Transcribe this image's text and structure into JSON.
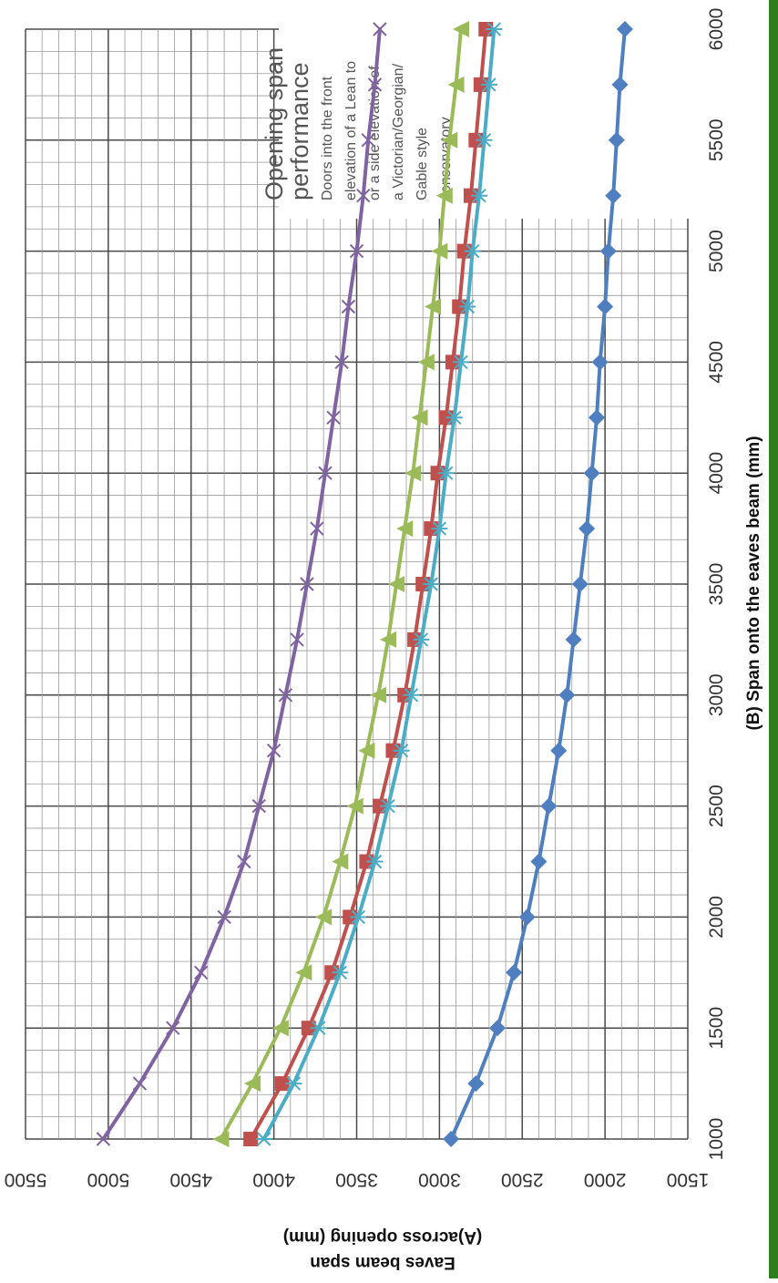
{
  "chart_data": {
    "type": "line",
    "note": {
      "title_lines": [
        "Opening span",
        "performance"
      ],
      "body_lines": [
        "Doors into the front",
        "elevation of a Lean to",
        "or a side elevation of",
        "a Victorian/Georgian/",
        "Gable style",
        "conservatory"
      ]
    },
    "xlabel": "(B) Span onto the eaves beam (mm)",
    "ylabel_lines": [
      "Eaves beam span",
      "(A)across opening (mm)"
    ],
    "xlim": [
      1000,
      6000
    ],
    "ylim": [
      1500,
      5500
    ],
    "x_ticks": [
      "1000",
      "1500",
      "2000",
      "2500",
      "3000",
      "3500",
      "4000",
      "4500",
      "5000",
      "5500",
      "6000"
    ],
    "y_ticks": [
      "1500",
      "2000",
      "2500",
      "3000",
      "3500",
      "4000",
      "4500",
      "5000",
      "5500"
    ],
    "grid": true,
    "orientation": "rotated 90 degrees clockwise",
    "x": [
      1000,
      1250,
      1500,
      1750,
      2000,
      2250,
      2500,
      2750,
      3000,
      3250,
      3500,
      3750,
      4000,
      4250,
      4500,
      4750,
      5000,
      5250,
      5500,
      5750,
      6000
    ],
    "series": [
      {
        "color": "#4F7FC0",
        "marker": "diamond",
        "values": [
          2930,
          2780,
          2650,
          2550,
          2470,
          2400,
          2340,
          2280,
          2230,
          2190,
          2150,
          2110,
          2080,
          2050,
          2030,
          2000,
          1980,
          1950,
          1930,
          1910,
          1880
        ]
      },
      {
        "color": "#C0504D",
        "marker": "square",
        "values": [
          4140,
          3950,
          3790,
          3650,
          3540,
          3440,
          3360,
          3280,
          3210,
          3150,
          3100,
          3050,
          3010,
          2960,
          2920,
          2880,
          2850,
          2810,
          2780,
          2750,
          2720
        ]
      },
      {
        "color": "#9BBB59",
        "marker": "triangle",
        "values": [
          4320,
          4130,
          3960,
          3820,
          3700,
          3600,
          3510,
          3440,
          3370,
          3310,
          3260,
          3210,
          3160,
          3120,
          3080,
          3040,
          3000,
          2970,
          2940,
          2900,
          2870
        ]
      },
      {
        "color": "#8064A2",
        "marker": "x",
        "values": [
          5030,
          4810,
          4610,
          4440,
          4300,
          4180,
          4090,
          4000,
          3930,
          3860,
          3800,
          3740,
          3690,
          3640,
          3590,
          3550,
          3500,
          3460,
          3430,
          3390,
          3360
        ]
      },
      {
        "color": "#4BACC6",
        "marker": "star",
        "values": [
          4060,
          3880,
          3730,
          3600,
          3490,
          3390,
          3310,
          3230,
          3170,
          3110,
          3050,
          3000,
          2960,
          2910,
          2870,
          2830,
          2800,
          2760,
          2730,
          2700,
          2670
        ]
      }
    ]
  }
}
